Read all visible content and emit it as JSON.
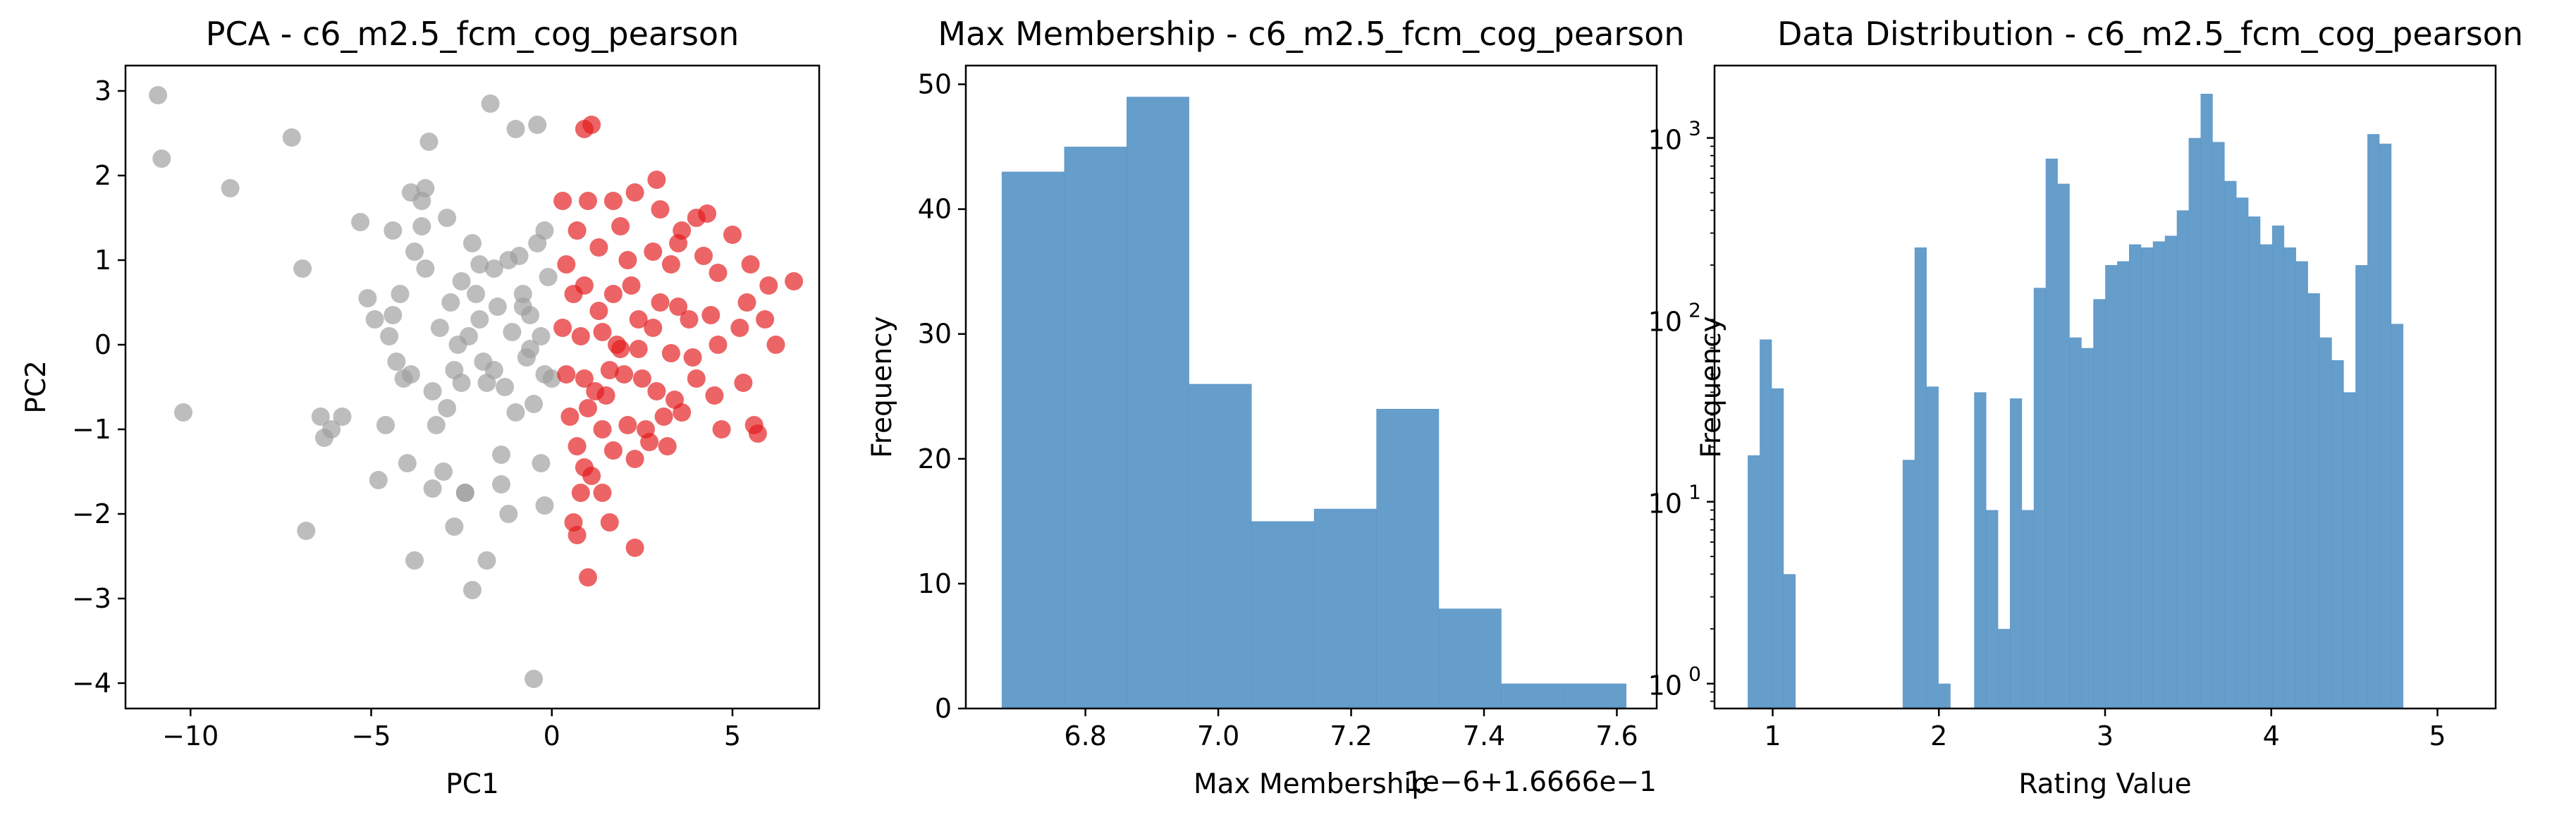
{
  "colors": {
    "cluster_a": "#9e9e9e",
    "cluster_b": "#e31a1c",
    "hist": "#4a8cc2"
  },
  "chart_data": [
    {
      "type": "scatter",
      "title": "PCA - c6_m2.5_fcm_cog_pearson",
      "xlabel": "PC1",
      "ylabel": "PC2",
      "xlim": [
        -11.8,
        7.4
      ],
      "ylim": [
        -4.3,
        3.3
      ],
      "xticks": [
        -10,
        -5,
        0,
        5
      ],
      "yticks": [
        -4,
        -3,
        -2,
        -1,
        0,
        1,
        2,
        3
      ],
      "grid": false,
      "series": [
        {
          "color": "#9e9e9e",
          "points": [
            [
              -10.9,
              2.95
            ],
            [
              -10.8,
              2.2
            ],
            [
              -8.9,
              1.85
            ],
            [
              -10.2,
              -0.8
            ],
            [
              -7.2,
              2.45
            ],
            [
              -6.9,
              0.9
            ],
            [
              -6.8,
              -2.2
            ],
            [
              -6.4,
              -0.85
            ],
            [
              -6.1,
              -1.0
            ],
            [
              -5.8,
              -0.85
            ],
            [
              -6.3,
              -1.1
            ],
            [
              -5.3,
              1.45
            ],
            [
              -5.1,
              0.55
            ],
            [
              -4.9,
              0.3
            ],
            [
              -4.6,
              -0.95
            ],
            [
              -4.4,
              0.35
            ],
            [
              -4.5,
              0.1
            ],
            [
              -4.3,
              -0.2
            ],
            [
              -4.1,
              -0.4
            ],
            [
              -3.9,
              1.8
            ],
            [
              -3.8,
              1.1
            ],
            [
              -3.6,
              1.7
            ],
            [
              -3.5,
              1.85
            ],
            [
              -3.4,
              2.4
            ],
            [
              -3.2,
              -0.95
            ],
            [
              -3.1,
              0.2
            ],
            [
              -2.9,
              1.5
            ],
            [
              -2.9,
              -0.75
            ],
            [
              -3.3,
              -0.55
            ],
            [
              -2.8,
              0.5
            ],
            [
              -2.7,
              -0.3
            ],
            [
              -2.6,
              0.0
            ],
            [
              -2.5,
              -0.45
            ],
            [
              -2.4,
              -1.75
            ],
            [
              -2.2,
              1.2
            ],
            [
              -2.1,
              0.6
            ],
            [
              -2.0,
              0.3
            ],
            [
              -1.9,
              -0.2
            ],
            [
              -1.7,
              2.85
            ],
            [
              -1.6,
              0.9
            ],
            [
              -1.5,
              0.45
            ],
            [
              -1.4,
              -1.3
            ],
            [
              -1.3,
              -0.5
            ],
            [
              -1.2,
              1.0
            ],
            [
              -1.0,
              2.55
            ],
            [
              -0.9,
              1.05
            ],
            [
              -0.8,
              0.6
            ],
            [
              -0.7,
              -0.15
            ],
            [
              -0.6,
              0.35
            ],
            [
              -0.5,
              -0.7
            ],
            [
              -0.4,
              2.6
            ],
            [
              -0.4,
              1.2
            ],
            [
              -0.3,
              0.1
            ],
            [
              -0.2,
              -0.35
            ],
            [
              -0.1,
              0.8
            ],
            [
              0.0,
              -0.4
            ],
            [
              -0.2,
              -1.9
            ],
            [
              -0.5,
              -3.95
            ],
            [
              -1.2,
              -2.0
            ],
            [
              -1.8,
              -2.55
            ],
            [
              -2.2,
              -2.9
            ],
            [
              -2.4,
              -1.75
            ],
            [
              -3.0,
              -1.5
            ],
            [
              -3.8,
              -2.55
            ],
            [
              -4.0,
              -1.4
            ],
            [
              -4.8,
              -1.6
            ],
            [
              -3.3,
              -1.7
            ],
            [
              -2.0,
              0.95
            ],
            [
              -1.1,
              0.15
            ],
            [
              -0.6,
              -0.05
            ],
            [
              -0.2,
              1.35
            ],
            [
              -1.8,
              -0.45
            ],
            [
              -2.7,
              -2.15
            ],
            [
              -1.4,
              -1.65
            ],
            [
              -3.5,
              0.9
            ],
            [
              -4.2,
              0.6
            ],
            [
              -2.3,
              0.1
            ],
            [
              -1.0,
              -0.8
            ],
            [
              -0.3,
              -1.4
            ],
            [
              -0.8,
              0.45
            ],
            [
              -2.5,
              0.75
            ],
            [
              -1.6,
              -0.3
            ],
            [
              -3.9,
              -0.35
            ],
            [
              -4.4,
              1.35
            ],
            [
              -3.6,
              1.4
            ]
          ]
        },
        {
          "color": "#e31a1c",
          "points": [
            [
              1.1,
              2.6
            ],
            [
              0.9,
              2.55
            ],
            [
              2.9,
              1.95
            ],
            [
              1.7,
              1.7
            ],
            [
              2.3,
              1.8
            ],
            [
              0.3,
              1.7
            ],
            [
              1.0,
              1.7
            ],
            [
              1.9,
              1.4
            ],
            [
              3.0,
              1.6
            ],
            [
              3.6,
              1.35
            ],
            [
              3.5,
              1.2
            ],
            [
              4.0,
              1.5
            ],
            [
              4.3,
              1.55
            ],
            [
              5.0,
              1.3
            ],
            [
              5.5,
              0.95
            ],
            [
              6.0,
              0.7
            ],
            [
              6.7,
              0.75
            ],
            [
              0.7,
              1.35
            ],
            [
              1.3,
              1.15
            ],
            [
              2.1,
              1.0
            ],
            [
              2.8,
              1.1
            ],
            [
              3.3,
              0.95
            ],
            [
              4.2,
              1.05
            ],
            [
              4.6,
              0.85
            ],
            [
              0.4,
              0.95
            ],
            [
              0.9,
              0.7
            ],
            [
              1.7,
              0.6
            ],
            [
              2.2,
              0.7
            ],
            [
              3.0,
              0.5
            ],
            [
              3.5,
              0.45
            ],
            [
              3.8,
              0.3
            ],
            [
              4.4,
              0.35
            ],
            [
              5.4,
              0.5
            ],
            [
              5.9,
              0.3
            ],
            [
              6.2,
              0.0
            ],
            [
              0.3,
              0.2
            ],
            [
              0.8,
              0.1
            ],
            [
              1.4,
              0.15
            ],
            [
              1.8,
              0.0
            ],
            [
              2.4,
              -0.05
            ],
            [
              2.8,
              0.2
            ],
            [
              3.3,
              -0.1
            ],
            [
              3.9,
              -0.15
            ],
            [
              4.6,
              0.0
            ],
            [
              5.2,
              0.2
            ],
            [
              0.4,
              -0.35
            ],
            [
              0.9,
              -0.4
            ],
            [
              1.2,
              -0.55
            ],
            [
              1.6,
              -0.3
            ],
            [
              2.0,
              -0.35
            ],
            [
              2.5,
              -0.4
            ],
            [
              2.9,
              -0.55
            ],
            [
              3.4,
              -0.65
            ],
            [
              4.0,
              -0.4
            ],
            [
              4.5,
              -0.6
            ],
            [
              5.3,
              -0.45
            ],
            [
              0.5,
              -0.85
            ],
            [
              1.0,
              -0.75
            ],
            [
              1.4,
              -1.0
            ],
            [
              2.1,
              -0.95
            ],
            [
              2.6,
              -1.0
            ],
            [
              3.1,
              -0.85
            ],
            [
              3.6,
              -0.8
            ],
            [
              4.7,
              -1.0
            ],
            [
              5.6,
              -0.95
            ],
            [
              5.7,
              -1.05
            ],
            [
              0.7,
              -1.2
            ],
            [
              1.7,
              -1.25
            ],
            [
              2.3,
              -1.35
            ],
            [
              2.7,
              -1.15
            ],
            [
              3.2,
              -1.2
            ],
            [
              1.1,
              -1.55
            ],
            [
              1.4,
              -1.75
            ],
            [
              0.8,
              -1.75
            ],
            [
              0.6,
              -2.1
            ],
            [
              0.7,
              -2.25
            ],
            [
              1.6,
              -2.1
            ],
            [
              2.3,
              -2.4
            ],
            [
              1.0,
              -2.75
            ],
            [
              0.9,
              -1.45
            ],
            [
              1.9,
              -0.05
            ],
            [
              0.6,
              0.6
            ],
            [
              1.3,
              0.4
            ],
            [
              2.4,
              0.3
            ],
            [
              1.5,
              -0.6
            ]
          ]
        }
      ]
    },
    {
      "type": "bar",
      "title": "Max Membership - c6_m2.5_fcm_cog_pearson",
      "xlabel": "Max Membership",
      "ylabel": "Frequency",
      "x_offset_text": "1e−6+1.6666e−1",
      "xlim": [
        6.62,
        7.66
      ],
      "ylim": [
        0,
        51.5
      ],
      "xticks": [
        "6.8",
        "7.0",
        "7.2",
        "7.4",
        "7.6"
      ],
      "xtick_values": [
        6.8,
        7.0,
        7.2,
        7.4,
        7.6
      ],
      "yticks": [
        0,
        10,
        20,
        30,
        40,
        50
      ],
      "bin_edges": [
        6.674,
        6.768,
        6.862,
        6.956,
        7.05,
        7.144,
        7.238,
        7.332,
        7.426,
        7.52,
        7.614
      ],
      "values": [
        43,
        45,
        49,
        26,
        15,
        16,
        24,
        8,
        2,
        2
      ],
      "color": "#4a8cc2"
    },
    {
      "type": "bar",
      "title": "Data Distribution - c6_m2.5_fcm_cog_pearson",
      "xlabel": "Rating Value",
      "ylabel": "Frequency",
      "yscale": "log",
      "xlim": [
        0.65,
        5.35
      ],
      "ylim": [
        0.73,
        2500
      ],
      "xticks": [
        1,
        2,
        3,
        4,
        5
      ],
      "ytick_labels": [
        "10",
        "10",
        "10",
        "10"
      ],
      "ytick_exponents": [
        "0",
        "1",
        "2",
        "3"
      ],
      "ytick_values": [
        1,
        10,
        100,
        1000
      ],
      "bin_start": 0.85,
      "bin_width": 0.0717,
      "values": [
        18,
        78,
        42,
        4,
        0,
        0,
        0,
        0,
        0,
        0,
        0,
        0,
        0,
        17,
        250,
        43,
        1,
        0,
        0,
        40,
        9,
        2,
        37,
        9,
        150,
        770,
        560,
        80,
        70,
        130,
        200,
        210,
        260,
        250,
        270,
        290,
        400,
        1000,
        1750,
        950,
        580,
        470,
        370,
        260,
        330,
        250,
        210,
        140,
        80,
        60,
        40,
        200,
        1050,
        930,
        95
      ],
      "color": "#4a8cc2"
    }
  ]
}
